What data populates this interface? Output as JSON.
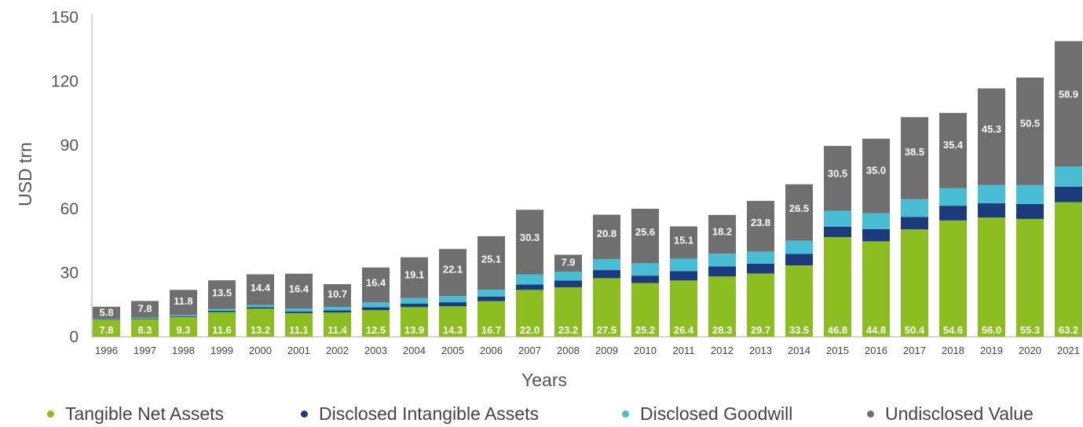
{
  "chart_data": {
    "type": "bar",
    "stacked": true,
    "xlabel": "Years",
    "ylabel": "USD trn",
    "ylim": [
      0,
      150
    ],
    "yticks": [
      0,
      30,
      60,
      90,
      120,
      150
    ],
    "grid": false,
    "legend_position": "bottom",
    "categories": [
      "1996",
      "1997",
      "1998",
      "1999",
      "2000",
      "2001",
      "2002",
      "2003",
      "2004",
      "2005",
      "2006",
      "2007",
      "2008",
      "2009",
      "2010",
      "2011",
      "2012",
      "2013",
      "2014",
      "2015",
      "2016",
      "2017",
      "2018",
      "2019",
      "2020",
      "2021"
    ],
    "series": [
      {
        "name": "Tangible Net Assets",
        "color": "#8cbe22",
        "values": [
          7.8,
          8.3,
          9.3,
          11.6,
          13.2,
          11.1,
          11.4,
          12.5,
          13.9,
          14.3,
          16.7,
          22.0,
          23.2,
          27.5,
          25.2,
          26.4,
          28.3,
          29.7,
          33.5,
          46.8,
          44.8,
          50.4,
          54.6,
          56.0,
          55.3,
          63.2
        ]
      },
      {
        "name": "Disclosed Intangible Assets",
        "color": "#1b3b7c",
        "values": [
          0.2,
          0.3,
          0.4,
          0.6,
          0.7,
          0.8,
          1.0,
          1.3,
          1.7,
          1.9,
          2.2,
          2.5,
          3.2,
          3.8,
          3.5,
          4.4,
          4.7,
          4.6,
          5.4,
          4.9,
          5.7,
          5.9,
          6.9,
          6.7,
          7.0,
          7.2
        ]
      },
      {
        "name": "Disclosed Goodwill",
        "color": "#48bdd4",
        "values": [
          0.3,
          0.4,
          0.5,
          0.8,
          1.0,
          1.3,
          1.6,
          2.3,
          2.6,
          2.9,
          3.2,
          4.8,
          4.2,
          5.2,
          5.8,
          5.9,
          6.0,
          5.7,
          6.2,
          7.4,
          7.5,
          8.3,
          8.2,
          8.6,
          8.9,
          9.5
        ]
      },
      {
        "name": "Undisclosed Value",
        "color": "#6f6f6f",
        "values": [
          5.8,
          7.8,
          11.8,
          13.5,
          14.4,
          16.4,
          10.7,
          16.4,
          19.1,
          22.1,
          25.1,
          30.3,
          7.9,
          20.8,
          25.6,
          15.1,
          18.2,
          23.8,
          26.5,
          30.5,
          35.0,
          38.5,
          35.4,
          45.3,
          50.5,
          58.9
        ]
      }
    ],
    "data_labels": {
      "Tangible Net Assets": [
        "7.8",
        "8.3",
        "9.3",
        "11.6",
        "13.2",
        "11.1",
        "11.4",
        "12.5",
        "13.9",
        "14.3",
        "16.7",
        "22.0",
        "23.2",
        "27.5",
        "25.2",
        "26.4",
        "28.3",
        "29.7",
        "33.5",
        "46.8",
        "44.8",
        "50.4",
        "54.6",
        "56.0",
        "55.3",
        "63.2"
      ],
      "Undisclosed Value": [
        "5.8",
        "7.8",
        "11.8",
        "13.5",
        "14.4",
        "16.4",
        "10.7",
        "16.4",
        "19.1",
        "22.1",
        "25.1",
        "30.3",
        "7.9",
        "20.8",
        "25.6",
        "15.1",
        "18.2",
        "23.8",
        "26.5",
        "30.5",
        "35.0",
        "38.5",
        "35.4",
        "45.3",
        "50.5",
        "58.9"
      ]
    },
    "legend": [
      "Tangible Net Assets",
      "Disclosed Intangible Assets",
      "Disclosed Goodwill",
      "Undisclosed Value"
    ]
  }
}
